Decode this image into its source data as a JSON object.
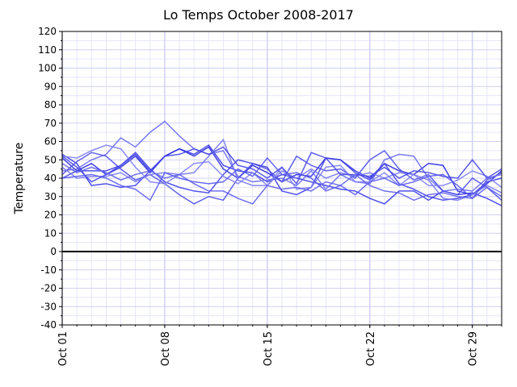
{
  "chart_data": {
    "type": "line",
    "title": "Lo Temps October 2008-2017",
    "ylabel": "Temperature",
    "x": [
      1,
      2,
      3,
      4,
      5,
      6,
      7,
      8,
      9,
      10,
      11,
      12,
      13,
      14,
      15,
      16,
      17,
      18,
      19,
      20,
      21,
      22,
      23,
      24,
      25,
      26,
      27,
      28,
      29,
      30,
      31
    ],
    "xlim": [
      1,
      31
    ],
    "xticks": [
      {
        "value": 1,
        "label": "Oct 01"
      },
      {
        "value": 8,
        "label": "Oct 08"
      },
      {
        "value": 15,
        "label": "Oct 15"
      },
      {
        "value": 22,
        "label": "Oct 22"
      },
      {
        "value": 29,
        "label": "Oct 29"
      }
    ],
    "ylim": [
      -40,
      120
    ],
    "yticks": [
      -40,
      -30,
      -20,
      -10,
      0,
      10,
      20,
      30,
      40,
      50,
      60,
      70,
      80,
      90,
      100,
      110,
      120
    ],
    "yminorticks": [
      -35,
      -25,
      -15,
      -5,
      5,
      15,
      25,
      35,
      45,
      55,
      65,
      75,
      85,
      95,
      105,
      115
    ],
    "grid": true,
    "zero_line": 0,
    "series": [
      {
        "color": "#3b3be6",
        "values": [
          53,
          48,
          36,
          37,
          35,
          36,
          44,
          52,
          56,
          53,
          58,
          47,
          44,
          43,
          38,
          42,
          40,
          38,
          36,
          34,
          33,
          29,
          26,
          33,
          33,
          28,
          33,
          31,
          32,
          29,
          25
        ]
      },
      {
        "color": "#2a2ae0",
        "values": [
          51,
          44,
          48,
          42,
          46,
          52,
          43,
          52,
          56,
          52,
          57,
          45,
          40,
          47,
          43,
          38,
          42,
          41,
          51,
          50,
          44,
          40,
          48,
          44,
          42,
          48,
          47,
          33,
          31,
          37,
          44
        ]
      },
      {
        "color": "#6a6aee",
        "values": [
          44,
          45,
          50,
          53,
          62,
          57,
          65,
          71,
          63,
          56,
          53,
          55,
          41,
          38,
          39,
          40,
          36,
          44,
          34,
          42,
          38,
          37,
          50,
          53,
          52,
          40,
          33,
          34,
          33,
          40,
          42
        ]
      },
      {
        "color": "#5050ea",
        "values": [
          42,
          49,
          54,
          52,
          45,
          39,
          42,
          37,
          31,
          26,
          30,
          28,
          40,
          48,
          45,
          38,
          52,
          47,
          44,
          45,
          40,
          50,
          55,
          45,
          39,
          42,
          33,
          31,
          40,
          35,
          28
        ]
      },
      {
        "color": "#4040e8",
        "values": [
          40,
          44,
          44,
          44,
          47,
          54,
          45,
          38,
          35,
          33,
          32,
          42,
          50,
          48,
          46,
          33,
          31,
          35,
          51,
          50,
          43,
          39,
          48,
          37,
          34,
          30,
          28,
          29,
          31,
          38,
          40
        ]
      },
      {
        "color": "#8080f4",
        "values": [
          52,
          51,
          55,
          58,
          56,
          46,
          38,
          37,
          42,
          48,
          49,
          41,
          37,
          43,
          36,
          46,
          34,
          35,
          46,
          47,
          38,
          38,
          43,
          36,
          42,
          36,
          36,
          39,
          44,
          41,
          35
        ]
      },
      {
        "color": "#7878f2",
        "values": [
          46,
          40,
          41,
          41,
          43,
          38,
          42,
          43,
          42,
          43,
          52,
          61,
          39,
          36,
          36,
          44,
          40,
          45,
          40,
          43,
          41,
          43,
          40,
          43,
          42,
          39,
          29,
          28,
          31,
          36,
          32
        ]
      },
      {
        "color": "#4848e6",
        "values": [
          52,
          46,
          38,
          42,
          47,
          53,
          44,
          52,
          53,
          56,
          53,
          57,
          47,
          45,
          40,
          46,
          37,
          54,
          51,
          42,
          42,
          41,
          46,
          40,
          44,
          43,
          41,
          40,
          50,
          40,
          45
        ]
      },
      {
        "color": "#5a5af0",
        "values": [
          40,
          41,
          42,
          40,
          36,
          34,
          28,
          43,
          40,
          38,
          37,
          38,
          45,
          41,
          51,
          42,
          43,
          40,
          33,
          36,
          31,
          38,
          40,
          36,
          38,
          41,
          42,
          36,
          29,
          35,
          30
        ]
      },
      {
        "color": "#6060ec",
        "values": [
          48,
          43,
          46,
          43,
          39,
          42,
          44,
          40,
          42,
          37,
          33,
          33,
          29,
          26,
          36,
          34,
          35,
          33,
          38,
          36,
          42,
          36,
          33,
          32,
          28,
          31,
          32,
          30,
          29,
          39,
          43
        ]
      }
    ]
  }
}
